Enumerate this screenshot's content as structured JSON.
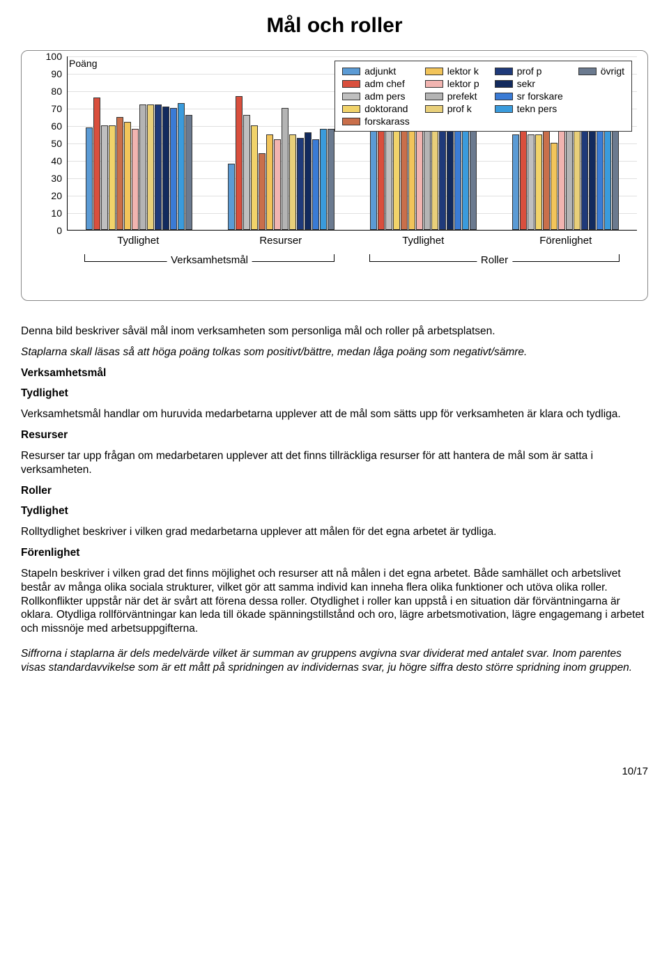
{
  "title": "Mål och roller",
  "chart": {
    "y_title": "Poäng",
    "ylim": [
      0,
      100
    ],
    "ytick_step": 10,
    "grid_color": "#e0e0e0",
    "background_color": "#ffffff",
    "bar_border": "#333333",
    "series": [
      {
        "key": "adjunkt",
        "label": "adjunkt",
        "color": "#5b9bd5"
      },
      {
        "key": "adm_chef",
        "label": "adm chef",
        "color": "#d94f3d"
      },
      {
        "key": "adm_pers",
        "label": "adm pers",
        "color": "#bfbfbf"
      },
      {
        "key": "doktorand",
        "label": "doktorand",
        "color": "#f1d36a"
      },
      {
        "key": "forskarass",
        "label": "forskarass",
        "color": "#c96f4b"
      },
      {
        "key": "lektor_k",
        "label": "lektor k",
        "color": "#f2c45a"
      },
      {
        "key": "lektor_p",
        "label": "lektor p",
        "color": "#f1b4b0"
      },
      {
        "key": "prefekt",
        "label": "prefekt",
        "color": "#b4b4b4"
      },
      {
        "key": "prof_k",
        "label": "prof k",
        "color": "#e8cf7a"
      },
      {
        "key": "prof_p",
        "label": "prof p",
        "color": "#1f3a7a"
      },
      {
        "key": "sekr",
        "label": "sekr",
        "color": "#122a5e"
      },
      {
        "key": "sr_forskare",
        "label": "sr forskare",
        "color": "#3a7bd5"
      },
      {
        "key": "tekn_pers",
        "label": "tekn pers",
        "color": "#3a9bdc"
      },
      {
        "key": "ovrigt",
        "label": "övrigt",
        "color": "#6b7a8f"
      }
    ],
    "legend_columns": [
      [
        "adjunkt",
        "adm_chef",
        "adm_pers",
        "doktorand",
        "forskarass"
      ],
      [
        "lektor_k",
        "lektor_p",
        "prefekt",
        "prof_k"
      ],
      [
        "prof_p",
        "sekr",
        "sr_forskare",
        "tekn_pers"
      ],
      [
        "ovrigt"
      ]
    ],
    "super_groups": [
      {
        "label": "Verksamhetsmål",
        "categories": [
          "Tydlighet",
          "Resurser"
        ]
      },
      {
        "label": "Roller",
        "categories": [
          "Tydlighet",
          "Förenlighet"
        ]
      }
    ],
    "data": {
      "Verksamhetsmål|Tydlighet": [
        59,
        76,
        60,
        60,
        65,
        62,
        58,
        72,
        72,
        72,
        71,
        70,
        73,
        66
      ],
      "Verksamhetsmål|Resurser": [
        38,
        77,
        66,
        60,
        44,
        55,
        52,
        70,
        55,
        53,
        56,
        52,
        58,
        58
      ],
      "Roller|Tydlighet": [
        72,
        70,
        72,
        68,
        65,
        72,
        70,
        72,
        70,
        72,
        72,
        72,
        72,
        70
      ],
      "Roller|Förenlighet": [
        55,
        70,
        55,
        55,
        60,
        50,
        60,
        62,
        58,
        60,
        60,
        60,
        60,
        60
      ]
    }
  },
  "text": {
    "p1": "Denna bild beskriver såväl mål inom verksamheten som personliga mål och roller på arbetsplatsen.",
    "p2": "Staplarna skall läsas så att höga poäng tolkas som positivt/bättre, medan låga poäng som negativt/sämre.",
    "h_verksamhetsmal": "Verksamhetsmål",
    "h_tydlighet1": "Tydlighet",
    "p3": "Verksamhetsmål handlar om huruvida medarbetarna upplever att de mål som sätts upp för verksamheten är klara och tydliga.",
    "h_resurser": "Resurser",
    "p4": "Resurser tar upp frågan om medarbetaren upplever att det finns tillräckliga resurser för att hantera de mål som är satta i verksamheten.",
    "h_roller": "Roller",
    "h_tydlighet2": "Tydlighet",
    "p5": "Rolltydlighet beskriver i vilken grad medarbetarna upplever att målen för det egna arbetet är tydliga.",
    "h_forenlighet": "Förenlighet",
    "p6": "Stapeln beskriver i vilken grad det finns möjlighet och resurser att nå målen i det egna arbetet. Både samhället och arbetslivet består av många olika sociala strukturer, vilket gör att samma individ kan inneha flera olika funktioner och utöva olika roller. Rollkonflikter uppstår när det är svårt att förena dessa roller. Otydlighet i roller kan uppstå i en situation där förväntningarna är oklara. Otydliga rollförväntningar kan leda till ökade spänningstillstånd och oro, lägre arbetsmotivation, lägre engagemang i arbetet och missnöje med arbetsuppgifterna.",
    "p7": "Siffrorna i staplarna är dels medelvärde vilket är summan av gruppens avgivna svar dividerat med antalet svar. Inom parentes visas standardavvikelse som är ett mått på spridningen av individernas svar, ju högre siffra desto större spridning inom gruppen.",
    "page": "10/17"
  }
}
